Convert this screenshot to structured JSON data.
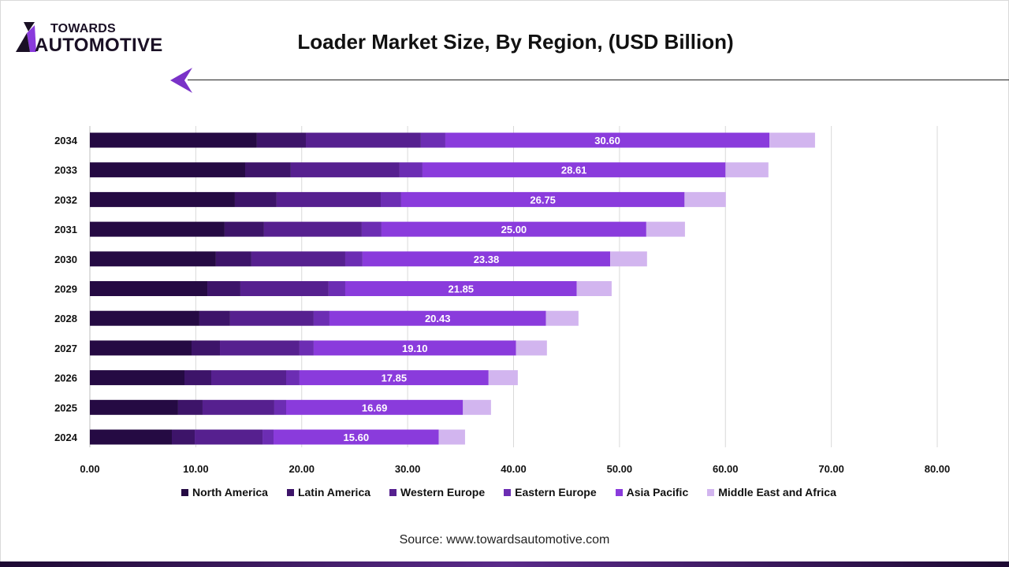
{
  "logo": {
    "line1": "TOWARDS",
    "line2": "AUTOMOTIVE"
  },
  "title": "Loader Market Size, By Region, (USD Billion)",
  "source": "Source: www.towardsautomotive.com",
  "chart_data": {
    "type": "bar",
    "orientation": "horizontal",
    "stacked": true,
    "title": "Loader Market Size, By Region, (USD Billion)",
    "categories": [
      "2024",
      "2025",
      "2026",
      "2027",
      "2028",
      "2029",
      "2030",
      "2031",
      "2032",
      "2033",
      "2034"
    ],
    "xlim": [
      0,
      80
    ],
    "xticks": [
      "0.00",
      "10.00",
      "20.00",
      "30.00",
      "40.00",
      "50.00",
      "60.00",
      "70.00",
      "80.00"
    ],
    "grid": true,
    "legend_position": "bottom",
    "series": [
      {
        "name": "North America",
        "color": "#250a43",
        "values": [
          7.74,
          8.33,
          8.93,
          9.6,
          10.34,
          11.09,
          11.9,
          12.72,
          13.69,
          14.66,
          15.77
        ]
      },
      {
        "name": "Latin America",
        "color": "#3d1469",
        "values": [
          2.16,
          2.31,
          2.53,
          2.68,
          2.9,
          3.12,
          3.35,
          3.72,
          3.94,
          4.31,
          4.62
        ]
      },
      {
        "name": "Western Europe",
        "color": "#56208f",
        "values": [
          6.4,
          6.77,
          7.07,
          7.51,
          7.89,
          8.33,
          8.86,
          9.23,
          9.83,
          10.27,
          10.86
        ]
      },
      {
        "name": "Eastern Europe",
        "color": "#6c2db3",
        "values": [
          1.04,
          1.12,
          1.26,
          1.34,
          1.49,
          1.57,
          1.63,
          1.86,
          1.93,
          2.16,
          2.31
        ]
      },
      {
        "name": "Asia Pacific",
        "color": "#8a3bdc",
        "values": [
          15.6,
          16.69,
          17.85,
          19.1,
          20.43,
          21.85,
          23.38,
          25.0,
          26.75,
          28.61,
          30.6
        ],
        "data_labels": [
          "15.60",
          "16.69",
          "17.85",
          "19.10",
          "20.43",
          "21.85",
          "23.38",
          "25.00",
          "26.75",
          "28.61",
          "30.60"
        ]
      },
      {
        "name": "Middle East and Africa",
        "color": "#d2b5ef",
        "values": [
          2.48,
          2.65,
          2.76,
          2.92,
          3.08,
          3.3,
          3.48,
          3.65,
          3.9,
          4.05,
          4.3
        ]
      }
    ]
  }
}
